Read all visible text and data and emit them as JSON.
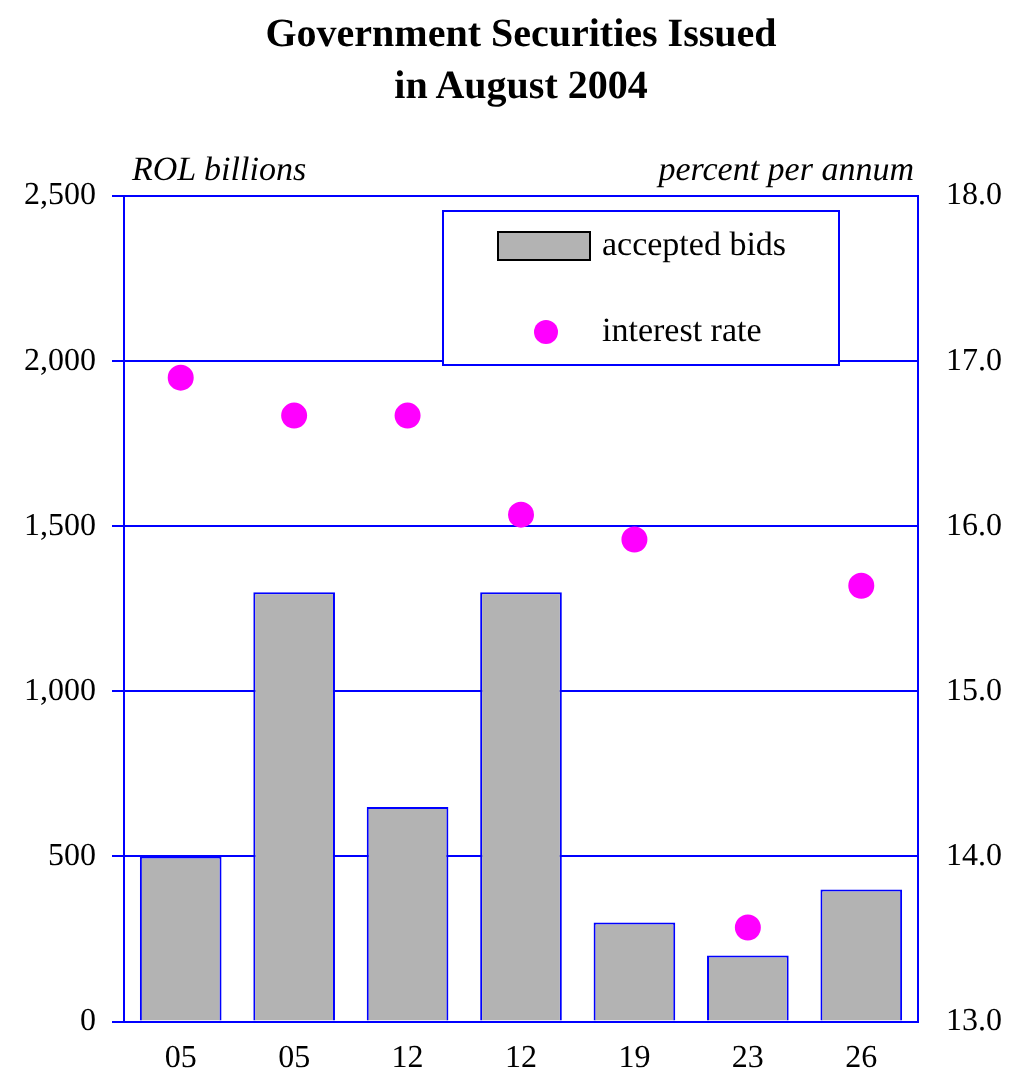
{
  "chart_data": {
    "type": "bar",
    "title": "Government Securities Issued\nin August 2004",
    "ylabel": "ROL billions",
    "y2label": "percent per annum",
    "categories": [
      "05",
      "05",
      "12",
      "12",
      "19",
      "23",
      "26"
    ],
    "series": [
      {
        "name": "accepted bids",
        "color": "#b3b3b3",
        "values": [
          500,
          1300,
          650,
          1300,
          300,
          200,
          400
        ]
      },
      {
        "name": "interest rate",
        "type": "scatter",
        "axis": "y2",
        "color": "#ff00ff",
        "values": [
          16.9,
          16.67,
          16.67,
          16.07,
          15.92,
          13.57,
          15.64
        ]
      }
    ],
    "ylim": [
      0,
      2500
    ],
    "yticks": [
      0,
      500,
      {
        "value": 1000,
        "label": "1,000"
      },
      {
        "value": 1500,
        "label": "1,500"
      },
      {
        "value": 2000,
        "label": "2,000"
      },
      {
        "value": 2500,
        "label": "2,500"
      }
    ],
    "y2lim": [
      13,
      18
    ],
    "y2ticks": [
      {
        "value": 13,
        "label": "13.0"
      },
      {
        "value": 14,
        "label": "14.0"
      },
      {
        "value": 15,
        "label": "15.0"
      },
      {
        "value": 16,
        "label": "16.0"
      },
      {
        "value": 17,
        "label": "17.0"
      },
      {
        "value": 18,
        "label": "18.0"
      }
    ],
    "grid": "y",
    "legend": "top right",
    "marker": "circle"
  }
}
